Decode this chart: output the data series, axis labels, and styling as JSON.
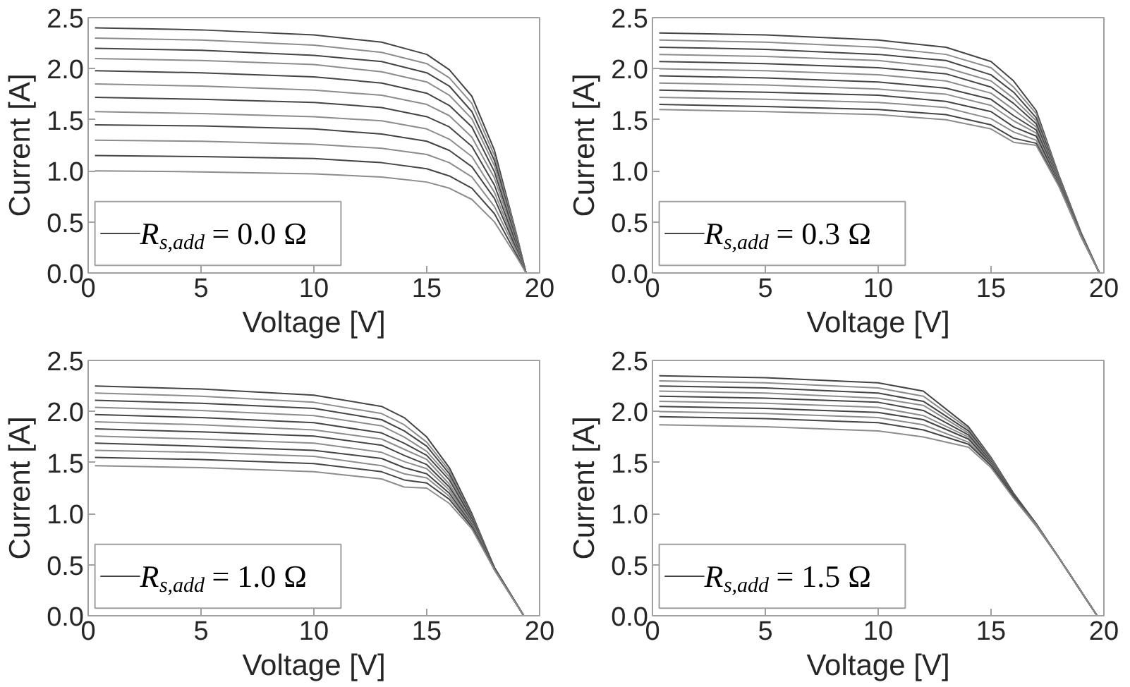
{
  "chart_data": [
    {
      "type": "line",
      "xlabel": "Voltage [V]",
      "ylabel": "Current [A]",
      "xlim": [
        0,
        20
      ],
      "ylim": [
        0,
        2.5
      ],
      "xticks": [
        0,
        5,
        10,
        15,
        20
      ],
      "yticks": [
        {
          "value": 0,
          "label": "0.0"
        },
        {
          "value": 0.5,
          "label": "0.5"
        },
        {
          "value": 1,
          "label": "1.0"
        },
        {
          "value": 1.5,
          "label": "1.5"
        },
        {
          "value": 2,
          "label": "2.0"
        },
        {
          "value": 2.5,
          "label": "2.5"
        }
      ],
      "legend": "bottom left",
      "x": [
        0.3,
        5,
        10,
        13,
        15,
        16,
        17,
        18,
        19,
        19.4
      ],
      "series": [
        {
          "name": "R$_{s,add}$ = 0.0 Ω",
          "color": "#444444",
          "values": [
            2.4,
            2.38,
            2.33,
            2.26,
            2.14,
            1.99,
            1.73,
            1.2,
            0.36,
            0
          ]
        },
        {
          "color": "#8c8c8c",
          "values": [
            2.3,
            2.28,
            2.23,
            2.16,
            2.05,
            1.91,
            1.66,
            1.15,
            0.35,
            0
          ]
        },
        {
          "color": "#444444",
          "values": [
            2.2,
            2.18,
            2.13,
            2.07,
            1.96,
            1.83,
            1.58,
            1.1,
            0.33,
            0
          ]
        },
        {
          "color": "#8c8c8c",
          "values": [
            2.1,
            2.08,
            2.04,
            1.97,
            1.87,
            1.74,
            1.51,
            1.05,
            0.32,
            0
          ]
        },
        {
          "color": "#444444",
          "values": [
            1.98,
            1.96,
            1.92,
            1.86,
            1.76,
            1.64,
            1.43,
            0.99,
            0.3,
            0
          ]
        },
        {
          "color": "#8c8c8c",
          "values": [
            1.85,
            1.83,
            1.79,
            1.74,
            1.65,
            1.54,
            1.33,
            0.93,
            0.28,
            0
          ]
        },
        {
          "color": "#444444",
          "values": [
            1.72,
            1.7,
            1.67,
            1.62,
            1.53,
            1.43,
            1.24,
            0.86,
            0.26,
            0
          ]
        },
        {
          "color": "#8c8c8c",
          "values": [
            1.58,
            1.56,
            1.53,
            1.49,
            1.41,
            1.31,
            1.14,
            0.79,
            0.24,
            0
          ]
        },
        {
          "color": "#444444",
          "values": [
            1.45,
            1.44,
            1.41,
            1.36,
            1.29,
            1.2,
            1.04,
            0.73,
            0.22,
            0
          ]
        },
        {
          "color": "#8c8c8c",
          "values": [
            1.3,
            1.29,
            1.26,
            1.22,
            1.16,
            1.08,
            0.94,
            0.65,
            0.2,
            0
          ]
        },
        {
          "color": "#444444",
          "values": [
            1.15,
            1.14,
            1.12,
            1.08,
            1.02,
            0.95,
            0.83,
            0.58,
            0.17,
            0
          ]
        },
        {
          "color": "#8c8c8c",
          "values": [
            1.0,
            0.99,
            0.97,
            0.94,
            0.89,
            0.83,
            0.72,
            0.5,
            0.15,
            0
          ]
        }
      ]
    },
    {
      "type": "line",
      "xlabel": "Voltage [V]",
      "ylabel": "Current [A]",
      "xlim": [
        0,
        20
      ],
      "ylim": [
        0,
        2.5
      ],
      "xticks": [
        0,
        5,
        10,
        15,
        20
      ],
      "yticks": [
        {
          "value": 0,
          "label": "0.0"
        },
        {
          "value": 0.5,
          "label": "0.5"
        },
        {
          "value": 1,
          "label": "1.0"
        },
        {
          "value": 1.5,
          "label": "1.5"
        },
        {
          "value": 2,
          "label": "2.0"
        },
        {
          "value": 2.5,
          "label": "2.5"
        }
      ],
      "legend": "bottom left",
      "x": [
        0.3,
        5,
        10,
        13,
        15,
        16,
        17,
        18,
        19,
        19.8
      ],
      "series": [
        {
          "name": "R$_{s,add}$ = 0.3 Ω",
          "color": "#444444",
          "values": [
            2.35,
            2.33,
            2.28,
            2.21,
            2.07,
            1.88,
            1.59,
            0.96,
            0.39,
            0
          ]
        },
        {
          "color": "#8c8c8c",
          "values": [
            2.28,
            2.26,
            2.21,
            2.14,
            2.01,
            1.82,
            1.56,
            0.95,
            0.38,
            0
          ]
        },
        {
          "color": "#444444",
          "values": [
            2.21,
            2.19,
            2.14,
            2.08,
            1.94,
            1.77,
            1.52,
            0.94,
            0.38,
            0
          ]
        },
        {
          "color": "#8c8c8c",
          "values": [
            2.14,
            2.12,
            2.08,
            2.01,
            1.88,
            1.71,
            1.49,
            0.93,
            0.38,
            0
          ]
        },
        {
          "color": "#444444",
          "values": [
            2.07,
            2.05,
            2.01,
            1.95,
            1.82,
            1.66,
            1.46,
            0.92,
            0.37,
            0
          ]
        },
        {
          "color": "#8c8c8c",
          "values": [
            2.0,
            1.98,
            1.94,
            1.88,
            1.76,
            1.6,
            1.43,
            0.91,
            0.37,
            0
          ]
        },
        {
          "color": "#444444",
          "values": [
            1.93,
            1.91,
            1.87,
            1.81,
            1.7,
            1.54,
            1.4,
            0.9,
            0.37,
            0
          ]
        },
        {
          "color": "#8c8c8c",
          "values": [
            1.86,
            1.84,
            1.8,
            1.75,
            1.64,
            1.49,
            1.37,
            0.89,
            0.36,
            0
          ]
        },
        {
          "color": "#444444",
          "values": [
            1.79,
            1.77,
            1.74,
            1.68,
            1.58,
            1.43,
            1.34,
            0.88,
            0.36,
            0
          ]
        },
        {
          "color": "#8c8c8c",
          "values": [
            1.72,
            1.7,
            1.67,
            1.62,
            1.51,
            1.38,
            1.3,
            0.87,
            0.36,
            0
          ]
        },
        {
          "color": "#444444",
          "values": [
            1.65,
            1.63,
            1.6,
            1.55,
            1.45,
            1.32,
            1.27,
            0.86,
            0.35,
            0
          ]
        },
        {
          "color": "#8c8c8c",
          "values": [
            1.6,
            1.58,
            1.55,
            1.5,
            1.41,
            1.28,
            1.25,
            0.85,
            0.35,
            0
          ]
        }
      ]
    },
    {
      "type": "line",
      "xlabel": "Voltage [V]",
      "ylabel": "Current [A]",
      "xlim": [
        0,
        20
      ],
      "ylim": [
        0,
        2.5
      ],
      "xticks": [
        0,
        5,
        10,
        15,
        20
      ],
      "yticks": [
        {
          "value": 0,
          "label": "0.0"
        },
        {
          "value": 0.5,
          "label": "0.5"
        },
        {
          "value": 1,
          "label": "1.0"
        },
        {
          "value": 1.5,
          "label": "1.5"
        },
        {
          "value": 2,
          "label": "2.0"
        },
        {
          "value": 2.5,
          "label": "2.5"
        }
      ],
      "legend": "bottom left",
      "x": [
        0.3,
        5,
        10,
        13,
        14,
        15,
        16,
        17,
        18,
        19.3
      ],
      "series": [
        {
          "name": "R$_{s,add}$ = 1.0 Ω",
          "color": "#444444",
          "values": [
            2.25,
            2.22,
            2.16,
            2.05,
            1.94,
            1.75,
            1.45,
            1.0,
            0.47,
            0
          ]
        },
        {
          "color": "#8c8c8c",
          "values": [
            2.18,
            2.15,
            2.09,
            1.98,
            1.87,
            1.7,
            1.42,
            0.98,
            0.47,
            0
          ]
        },
        {
          "color": "#444444",
          "values": [
            2.11,
            2.08,
            2.03,
            1.92,
            1.81,
            1.66,
            1.39,
            0.97,
            0.47,
            0
          ]
        },
        {
          "color": "#8c8c8c",
          "values": [
            2.04,
            2.01,
            1.96,
            1.86,
            1.75,
            1.61,
            1.36,
            0.96,
            0.47,
            0
          ]
        },
        {
          "color": "#444444",
          "values": [
            1.97,
            1.94,
            1.89,
            1.79,
            1.69,
            1.57,
            1.33,
            0.95,
            0.47,
            0
          ]
        },
        {
          "color": "#8c8c8c",
          "values": [
            1.9,
            1.87,
            1.82,
            1.73,
            1.63,
            1.53,
            1.29,
            0.93,
            0.46,
            0
          ]
        },
        {
          "color": "#444444",
          "values": [
            1.83,
            1.8,
            1.76,
            1.67,
            1.57,
            1.48,
            1.26,
            0.92,
            0.46,
            0
          ]
        },
        {
          "color": "#8c8c8c",
          "values": [
            1.76,
            1.73,
            1.69,
            1.6,
            1.51,
            1.44,
            1.23,
            0.91,
            0.46,
            0
          ]
        },
        {
          "color": "#444444",
          "values": [
            1.69,
            1.66,
            1.62,
            1.54,
            1.45,
            1.39,
            1.2,
            0.89,
            0.46,
            0
          ]
        },
        {
          "color": "#8c8c8c",
          "values": [
            1.62,
            1.6,
            1.56,
            1.47,
            1.39,
            1.35,
            1.17,
            0.88,
            0.45,
            0
          ]
        },
        {
          "color": "#444444",
          "values": [
            1.55,
            1.53,
            1.49,
            1.41,
            1.33,
            1.3,
            1.14,
            0.87,
            0.45,
            0
          ]
        },
        {
          "color": "#8c8c8c",
          "values": [
            1.47,
            1.45,
            1.41,
            1.34,
            1.26,
            1.25,
            1.1,
            0.85,
            0.45,
            0
          ]
        }
      ]
    },
    {
      "type": "line",
      "xlabel": "Voltage [V]",
      "ylabel": "Current [A]",
      "xlim": [
        0,
        20
      ],
      "ylim": [
        0,
        2.5
      ],
      "xticks": [
        0,
        5,
        10,
        15,
        20
      ],
      "yticks": [
        {
          "value": 0,
          "label": "0.0"
        },
        {
          "value": 0.5,
          "label": "0.5"
        },
        {
          "value": 1,
          "label": "1.0"
        },
        {
          "value": 1.5,
          "label": "1.5"
        },
        {
          "value": 2,
          "label": "2.0"
        },
        {
          "value": 2.5,
          "label": "2.5"
        }
      ],
      "legend": "bottom left",
      "x": [
        0.3,
        5,
        10,
        12,
        14,
        15,
        16,
        17,
        18,
        19.7
      ],
      "series": [
        {
          "name": "R$_{s,add}$ = 1.5 Ω",
          "color": "#444444",
          "values": [
            2.35,
            2.33,
            2.28,
            2.2,
            1.85,
            1.55,
            1.2,
            0.9,
            0.57,
            0
          ]
        },
        {
          "color": "#8c8c8c",
          "values": [
            2.3,
            2.28,
            2.23,
            2.15,
            1.83,
            1.54,
            1.19,
            0.9,
            0.57,
            0
          ]
        },
        {
          "color": "#444444",
          "values": [
            2.25,
            2.23,
            2.18,
            2.1,
            1.81,
            1.53,
            1.19,
            0.9,
            0.57,
            0
          ]
        },
        {
          "color": "#8c8c8c",
          "values": [
            2.2,
            2.18,
            2.13,
            2.06,
            1.79,
            1.52,
            1.18,
            0.89,
            0.57,
            0
          ]
        },
        {
          "color": "#444444",
          "values": [
            2.15,
            2.13,
            2.09,
            2.01,
            1.77,
            1.51,
            1.18,
            0.89,
            0.57,
            0
          ]
        },
        {
          "color": "#8c8c8c",
          "values": [
            2.1,
            2.08,
            2.04,
            1.96,
            1.75,
            1.5,
            1.17,
            0.89,
            0.57,
            0
          ]
        },
        {
          "color": "#444444",
          "values": [
            2.05,
            2.03,
            1.99,
            1.92,
            1.73,
            1.49,
            1.17,
            0.89,
            0.57,
            0
          ]
        },
        {
          "color": "#8c8c8c",
          "values": [
            2.0,
            1.98,
            1.94,
            1.87,
            1.7,
            1.48,
            1.16,
            0.89,
            0.57,
            0
          ]
        },
        {
          "color": "#444444",
          "values": [
            1.95,
            1.93,
            1.89,
            1.82,
            1.68,
            1.47,
            1.16,
            0.88,
            0.57,
            0
          ]
        },
        {
          "color": "#8c8c8c",
          "values": [
            1.87,
            1.85,
            1.81,
            1.75,
            1.65,
            1.45,
            1.15,
            0.88,
            0.57,
            0
          ]
        }
      ]
    }
  ]
}
